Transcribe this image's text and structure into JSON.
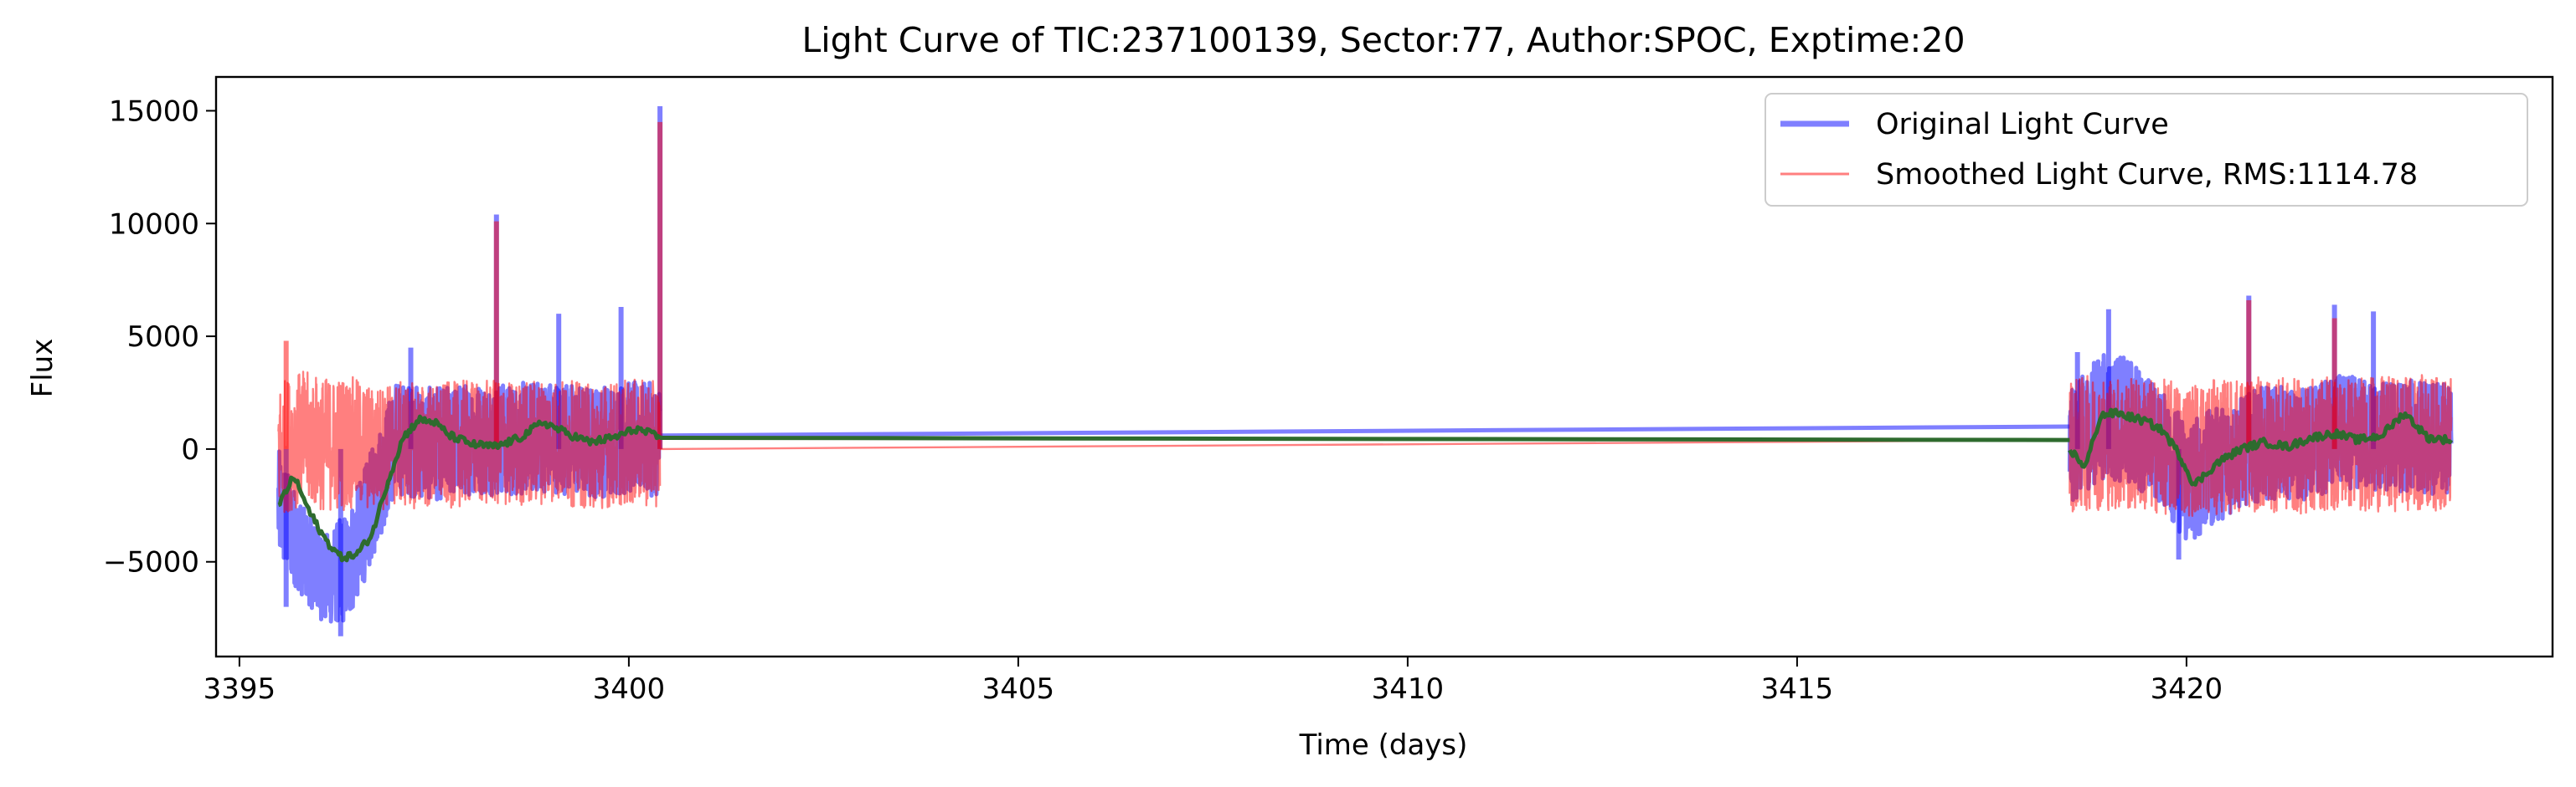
{
  "chart_data": {
    "type": "line",
    "title": "Light Curve of TIC:237100139, Sector:77, Author:SPOC, Exptime:20",
    "xlabel": "Time (days)",
    "ylabel": "Flux",
    "xlim": [
      3394.7,
      3424.7
    ],
    "ylim": [
      -9200,
      16500
    ],
    "x_ticks": [
      3395,
      3400,
      3405,
      3410,
      3415,
      3420
    ],
    "y_ticks": [
      -5000,
      0,
      5000,
      10000,
      15000
    ],
    "grid": false,
    "legend_position": "top-right",
    "series": [
      {
        "name": "Original Light Curve",
        "color": "#0000ff",
        "alpha": 0.5,
        "segments": [
          {
            "x": [
              3395.5,
              3395.8,
              3396.1,
              3396.4,
              3396.7,
              3397.0,
              3397.5,
              3398.0,
              3398.5,
              3399.0,
              3399.5,
              3400.0,
              3400.4
            ],
            "y_center": [
              -2500,
              -4500,
              -5800,
              -5200,
              -2500,
              500,
              200,
              500,
              400,
              600,
              300,
              500,
              400
            ],
            "y_spread": [
              2500,
              2000,
              2000,
              2500,
              2500,
              2500,
              2500,
              2500,
              2500,
              2500,
              2500,
              2500,
              2500
            ],
            "spikes": [
              {
                "x": 3395.6,
                "y": -7000
              },
              {
                "x": 3396.3,
                "y": -8300
              },
              {
                "x": 3397.2,
                "y": 4500
              },
              {
                "x": 3398.3,
                "y": 10400
              },
              {
                "x": 3399.1,
                "y": 6000
              },
              {
                "x": 3399.9,
                "y": 6300
              },
              {
                "x": 3400.4,
                "y": 15200
              }
            ]
          },
          {
            "x": [
              3418.5,
              3418.9,
              3419.3,
              3419.7,
              3420.0,
              3420.5,
              3421.0,
              3421.5,
              3422.0,
              3422.5,
              3423.0,
              3423.4
            ],
            "y_center": [
              0,
              1500,
              1200,
              0,
              -1500,
              -500,
              300,
              200,
              800,
              500,
              600,
              300
            ],
            "y_spread": [
              2500,
              2800,
              2800,
              2500,
              2800,
              2500,
              2500,
              2500,
              2500,
              2500,
              2500,
              2500
            ],
            "spikes": [
              {
                "x": 3418.6,
                "y": 4300
              },
              {
                "x": 3419.0,
                "y": 6200
              },
              {
                "x": 3419.9,
                "y": -4900
              },
              {
                "x": 3420.8,
                "y": 6800
              },
              {
                "x": 3421.9,
                "y": 6400
              },
              {
                "x": 3422.4,
                "y": 6100
              }
            ]
          }
        ],
        "bridge": {
          "x": [
            3400.4,
            3418.5
          ],
          "y": [
            600,
            1000
          ]
        }
      },
      {
        "name": "Smoothed Light Curve, RMS:1114.78",
        "color": "#ff0000",
        "alpha": 0.5,
        "segments": [
          {
            "x": [
              3395.5,
              3395.8,
              3396.1,
              3396.4,
              3396.7,
              3397.0,
              3397.5,
              3398.0,
              3398.5,
              3399.0,
              3399.5,
              3400.0,
              3400.4
            ],
            "y_center": [
              0,
              500,
              200,
              300,
              0,
              200,
              100,
              300,
              200,
              400,
              100,
              300,
              200
            ],
            "y_spread": [
              3000,
              3000,
              3000,
              3000,
              2800,
              2800,
              2800,
              2800,
              2800,
              2800,
              2800,
              2800,
              2800
            ],
            "spikes": [
              {
                "x": 3395.6,
                "y": 4800
              },
              {
                "x": 3398.3,
                "y": 10100
              },
              {
                "x": 3400.4,
                "y": 14500
              }
            ]
          },
          {
            "x": [
              3418.5,
              3418.9,
              3419.3,
              3419.7,
              3420.0,
              3420.5,
              3421.0,
              3421.5,
              3422.0,
              3422.5,
              3423.0,
              3423.4
            ],
            "y_center": [
              200,
              300,
              200,
              100,
              0,
              100,
              200,
              100,
              300,
              200,
              300,
              200
            ],
            "y_spread": [
              3000,
              3000,
              3000,
              3000,
              3000,
              3000,
              3000,
              3000,
              3000,
              3000,
              3000,
              3000
            ],
            "spikes": [
              {
                "x": 3420.8,
                "y": 6600
              },
              {
                "x": 3421.9,
                "y": 5800
              }
            ]
          }
        ],
        "bridge": {
          "x": [
            3400.4,
            3418.5
          ],
          "y": [
            0,
            400
          ]
        }
      },
      {
        "name": "",
        "color": "#2e6b2e",
        "alpha": 1,
        "role": "smoothed trend",
        "segments": [
          {
            "x": [
              3395.5,
              3395.7,
              3395.9,
              3396.1,
              3396.3,
              3396.5,
              3396.7,
              3396.9,
              3397.1,
              3397.3,
              3397.5,
              3397.7,
              3398.0,
              3398.3,
              3398.6,
              3398.9,
              3399.2,
              3399.5,
              3399.8,
              3400.1,
              3400.4
            ],
            "y": [
              -2500,
              -1200,
              -2800,
              -4000,
              -4800,
              -4700,
              -3800,
              -1500,
              500,
              1300,
              1200,
              600,
              200,
              100,
              500,
              1200,
              700,
              300,
              500,
              900,
              500
            ]
          },
          {
            "x": [
              3418.5,
              3418.7,
              3418.9,
              3419.1,
              3419.3,
              3419.5,
              3419.7,
              3419.9,
              3420.1,
              3420.4,
              3420.7,
              3421.0,
              3421.3,
              3421.6,
              3421.9,
              3422.2,
              3422.5,
              3422.8,
              3423.1,
              3423.4
            ],
            "y": [
              0,
              -800,
              1500,
              1600,
              1400,
              1200,
              800,
              -200,
              -1600,
              -600,
              0,
              300,
              100,
              500,
              700,
              400,
              600,
              1600,
              500,
              400
            ]
          }
        ],
        "bridge": {
          "x": [
            3400.4,
            3418.5
          ],
          "y": [
            500,
            400
          ]
        }
      }
    ]
  }
}
